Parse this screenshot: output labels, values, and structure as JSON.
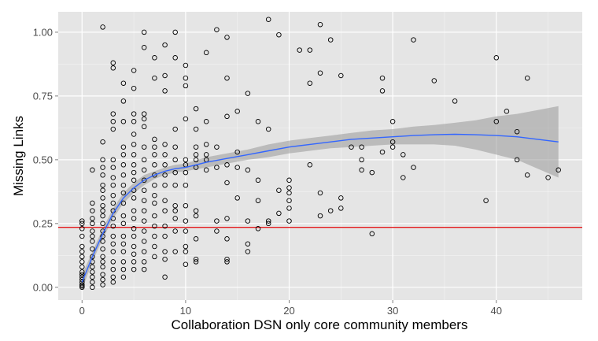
{
  "chart_data": {
    "type": "scatter",
    "title": "",
    "xlabel": "Collaboration DSN only core community members",
    "ylabel": "Missing Links",
    "xlim": [
      -2.3,
      48.3
    ],
    "ylim": [
      -0.05,
      1.08
    ],
    "x_ticks": [
      0,
      10,
      20,
      30,
      40
    ],
    "x_tick_labels": [
      "0",
      "10",
      "20",
      "30",
      "40"
    ],
    "y_ticks": [
      0.0,
      0.25,
      0.5,
      0.75,
      1.0
    ],
    "y_tick_labels": [
      "0.00",
      "0.25",
      "0.50",
      "0.75",
      "1.00"
    ],
    "grid": true,
    "background": "#e5e5e5",
    "colors": {
      "points": "#000000",
      "smooth_line": "#3366ff",
      "ribbon": "#999999",
      "hline": "#e41a1c",
      "grid": "#ffffff"
    },
    "reference_line": {
      "y": 0.235
    },
    "points": [
      [
        0,
        0.26
      ],
      [
        0,
        0.25
      ],
      [
        0,
        0.23
      ],
      [
        0,
        0.2
      ],
      [
        0,
        0.16
      ],
      [
        0,
        0.14
      ],
      [
        0,
        0.12
      ],
      [
        0,
        0.1
      ],
      [
        0,
        0.08
      ],
      [
        0,
        0.06
      ],
      [
        0,
        0.05
      ],
      [
        0,
        0.04
      ],
      [
        0,
        0.03
      ],
      [
        0,
        0.02
      ],
      [
        0,
        0.01
      ],
      [
        0,
        0.005
      ],
      [
        0,
        0.0
      ],
      [
        1,
        0.46
      ],
      [
        1,
        0.33
      ],
      [
        1,
        0.3
      ],
      [
        1,
        0.27
      ],
      [
        1,
        0.25
      ],
      [
        1,
        0.22
      ],
      [
        1,
        0.2
      ],
      [
        1,
        0.18
      ],
      [
        1,
        0.15
      ],
      [
        1,
        0.12
      ],
      [
        1,
        0.1
      ],
      [
        1,
        0.08
      ],
      [
        1,
        0.06
      ],
      [
        1,
        0.04
      ],
      [
        1,
        0.02
      ],
      [
        1,
        0.0
      ],
      [
        2,
        1.02
      ],
      [
        2,
        0.57
      ],
      [
        2,
        0.5
      ],
      [
        2,
        0.47
      ],
      [
        2,
        0.44
      ],
      [
        2,
        0.4
      ],
      [
        2,
        0.38
      ],
      [
        2,
        0.35
      ],
      [
        2,
        0.32
      ],
      [
        2,
        0.3
      ],
      [
        2,
        0.28
      ],
      [
        2,
        0.25
      ],
      [
        2,
        0.22
      ],
      [
        2,
        0.2
      ],
      [
        2,
        0.18
      ],
      [
        2,
        0.15
      ],
      [
        2,
        0.12
      ],
      [
        2,
        0.1
      ],
      [
        2,
        0.08
      ],
      [
        2,
        0.05
      ],
      [
        2,
        0.03
      ],
      [
        2,
        0.01
      ],
      [
        3,
        0.88
      ],
      [
        3,
        0.86
      ],
      [
        3,
        0.68
      ],
      [
        3,
        0.65
      ],
      [
        3,
        0.62
      ],
      [
        3,
        0.5
      ],
      [
        3,
        0.47
      ],
      [
        3,
        0.43
      ],
      [
        3,
        0.4
      ],
      [
        3,
        0.36
      ],
      [
        3,
        0.33
      ],
      [
        3,
        0.3
      ],
      [
        3,
        0.27
      ],
      [
        3,
        0.24
      ],
      [
        3,
        0.2
      ],
      [
        3,
        0.17
      ],
      [
        3,
        0.14
      ],
      [
        3,
        0.1
      ],
      [
        3,
        0.07
      ],
      [
        3,
        0.04
      ],
      [
        3,
        0.02
      ],
      [
        4,
        0.8
      ],
      [
        4,
        0.73
      ],
      [
        4,
        0.65
      ],
      [
        4,
        0.55
      ],
      [
        4,
        0.52
      ],
      [
        4,
        0.48
      ],
      [
        4,
        0.44
      ],
      [
        4,
        0.4
      ],
      [
        4,
        0.37
      ],
      [
        4,
        0.33
      ],
      [
        4,
        0.28
      ],
      [
        4,
        0.25
      ],
      [
        4,
        0.2
      ],
      [
        4,
        0.17
      ],
      [
        4,
        0.14
      ],
      [
        4,
        0.1
      ],
      [
        4,
        0.07
      ],
      [
        4,
        0.04
      ],
      [
        5,
        0.85
      ],
      [
        5,
        0.78
      ],
      [
        5,
        0.68
      ],
      [
        5,
        0.65
      ],
      [
        5,
        0.6
      ],
      [
        5,
        0.56
      ],
      [
        5,
        0.52
      ],
      [
        5,
        0.48
      ],
      [
        5,
        0.45
      ],
      [
        5,
        0.42
      ],
      [
        5,
        0.38
      ],
      [
        5,
        0.35
      ],
      [
        5,
        0.3
      ],
      [
        5,
        0.27
      ],
      [
        5,
        0.23
      ],
      [
        5,
        0.2
      ],
      [
        5,
        0.16
      ],
      [
        5,
        0.13
      ],
      [
        5,
        0.1
      ],
      [
        5,
        0.07
      ],
      [
        6,
        1.0
      ],
      [
        6,
        0.94
      ],
      [
        6,
        0.68
      ],
      [
        6,
        0.66
      ],
      [
        6,
        0.63
      ],
      [
        6,
        0.55
      ],
      [
        6,
        0.5
      ],
      [
        6,
        0.46
      ],
      [
        6,
        0.42
      ],
      [
        6,
        0.38
      ],
      [
        6,
        0.34
      ],
      [
        6,
        0.3
      ],
      [
        6,
        0.26
      ],
      [
        6,
        0.22
      ],
      [
        6,
        0.18
      ],
      [
        6,
        0.14
      ],
      [
        6,
        0.1
      ],
      [
        6,
        0.07
      ],
      [
        7,
        0.9
      ],
      [
        7,
        0.82
      ],
      [
        7,
        0.58
      ],
      [
        7,
        0.55
      ],
      [
        7,
        0.52
      ],
      [
        7,
        0.48
      ],
      [
        7,
        0.44
      ],
      [
        7,
        0.4
      ],
      [
        7,
        0.36
      ],
      [
        7,
        0.33
      ],
      [
        7,
        0.28
      ],
      [
        7,
        0.24
      ],
      [
        7,
        0.2
      ],
      [
        7,
        0.16
      ],
      [
        7,
        0.12
      ],
      [
        8,
        0.95
      ],
      [
        8,
        0.83
      ],
      [
        8,
        0.77
      ],
      [
        8,
        0.56
      ],
      [
        8,
        0.52
      ],
      [
        8,
        0.48
      ],
      [
        8,
        0.44
      ],
      [
        8,
        0.4
      ],
      [
        8,
        0.34
      ],
      [
        8,
        0.3
      ],
      [
        8,
        0.24
      ],
      [
        8,
        0.2
      ],
      [
        8,
        0.14
      ],
      [
        8,
        0.11
      ],
      [
        8,
        0.04
      ],
      [
        9,
        1.0
      ],
      [
        9,
        0.9
      ],
      [
        9,
        0.62
      ],
      [
        9,
        0.55
      ],
      [
        9,
        0.5
      ],
      [
        9,
        0.45
      ],
      [
        9,
        0.4
      ],
      [
        9,
        0.32
      ],
      [
        9,
        0.3
      ],
      [
        9,
        0.27
      ],
      [
        9,
        0.22
      ],
      [
        9,
        0.14
      ],
      [
        10,
        0.87
      ],
      [
        10,
        0.82
      ],
      [
        10,
        0.79
      ],
      [
        10,
        0.66
      ],
      [
        10,
        0.5
      ],
      [
        10,
        0.48
      ],
      [
        10,
        0.45
      ],
      [
        10,
        0.4
      ],
      [
        10,
        0.32
      ],
      [
        10,
        0.26
      ],
      [
        10,
        0.22
      ],
      [
        10,
        0.16
      ],
      [
        10,
        0.14
      ],
      [
        10,
        0.09
      ],
      [
        11,
        0.7
      ],
      [
        11,
        0.62
      ],
      [
        11,
        0.55
      ],
      [
        11,
        0.52
      ],
      [
        11,
        0.5
      ],
      [
        11,
        0.47
      ],
      [
        11,
        0.3
      ],
      [
        11,
        0.28
      ],
      [
        11,
        0.19
      ],
      [
        11,
        0.11
      ],
      [
        11,
        0.1
      ],
      [
        12,
        0.92
      ],
      [
        12,
        0.65
      ],
      [
        12,
        0.56
      ],
      [
        12,
        0.52
      ],
      [
        12,
        0.5
      ],
      [
        12,
        0.46
      ],
      [
        13,
        1.01
      ],
      [
        13,
        0.55
      ],
      [
        13,
        0.47
      ],
      [
        13,
        0.26
      ],
      [
        13,
        0.22
      ],
      [
        14,
        0.98
      ],
      [
        14,
        0.82
      ],
      [
        14,
        0.67
      ],
      [
        14,
        0.48
      ],
      [
        14,
        0.41
      ],
      [
        14,
        0.27
      ],
      [
        14,
        0.19
      ],
      [
        14,
        0.11
      ],
      [
        14,
        0.1
      ],
      [
        15,
        0.69
      ],
      [
        15,
        0.53
      ],
      [
        15,
        0.47
      ],
      [
        15,
        0.35
      ],
      [
        16,
        0.76
      ],
      [
        16,
        0.46
      ],
      [
        16,
        0.26
      ],
      [
        16,
        0.17
      ],
      [
        16,
        0.14
      ],
      [
        17,
        0.65
      ],
      [
        17,
        0.42
      ],
      [
        17,
        0.34
      ],
      [
        17,
        0.23
      ],
      [
        18,
        1.05
      ],
      [
        18,
        0.62
      ],
      [
        18,
        0.26
      ],
      [
        18,
        0.25
      ],
      [
        19,
        0.99
      ],
      [
        19,
        0.38
      ],
      [
        19,
        0.29
      ],
      [
        20,
        0.42
      ],
      [
        20,
        0.39
      ],
      [
        20,
        0.37
      ],
      [
        20,
        0.34
      ],
      [
        20,
        0.31
      ],
      [
        20,
        0.26
      ],
      [
        21,
        0.93
      ],
      [
        22,
        0.93
      ],
      [
        22,
        0.8
      ],
      [
        22,
        0.48
      ],
      [
        23,
        1.03
      ],
      [
        23,
        0.84
      ],
      [
        23,
        0.37
      ],
      [
        23,
        0.28
      ],
      [
        24,
        0.97
      ],
      [
        24,
        0.3
      ],
      [
        25,
        0.83
      ],
      [
        25,
        0.35
      ],
      [
        25,
        0.31
      ],
      [
        26,
        0.55
      ],
      [
        27,
        0.55
      ],
      [
        27,
        0.5
      ],
      [
        27,
        0.46
      ],
      [
        28,
        0.45
      ],
      [
        28,
        0.21
      ],
      [
        29,
        0.82
      ],
      [
        29,
        0.77
      ],
      [
        29,
        0.53
      ],
      [
        30,
        0.65
      ],
      [
        30,
        0.57
      ],
      [
        30,
        0.55
      ],
      [
        31,
        0.52
      ],
      [
        31,
        0.43
      ],
      [
        32,
        0.97
      ],
      [
        32,
        0.47
      ],
      [
        34,
        0.81
      ],
      [
        36,
        0.73
      ],
      [
        39,
        0.34
      ],
      [
        40,
        0.9
      ],
      [
        40,
        0.65
      ],
      [
        41,
        0.69
      ],
      [
        42,
        0.61
      ],
      [
        42,
        0.5
      ],
      [
        43,
        0.82
      ],
      [
        43,
        0.44
      ],
      [
        45,
        0.43
      ],
      [
        46,
        0.46
      ]
    ],
    "smooth": {
      "x": [
        0,
        1,
        2,
        3,
        4,
        5,
        6,
        7,
        8,
        9,
        10,
        12,
        14,
        16,
        18,
        20,
        22,
        24,
        26,
        28,
        30,
        32,
        34,
        36,
        38,
        40,
        42,
        44,
        46
      ],
      "y": [
        0.02,
        0.12,
        0.21,
        0.29,
        0.35,
        0.39,
        0.42,
        0.44,
        0.455,
        0.465,
        0.47,
        0.49,
        0.505,
        0.52,
        0.535,
        0.55,
        0.56,
        0.57,
        0.58,
        0.585,
        0.59,
        0.595,
        0.598,
        0.6,
        0.598,
        0.595,
        0.59,
        0.58,
        0.57
      ],
      "lower": [
        -0.01,
        0.1,
        0.19,
        0.27,
        0.33,
        0.37,
        0.4,
        0.425,
        0.44,
        0.45,
        0.455,
        0.47,
        0.485,
        0.5,
        0.51,
        0.525,
        0.535,
        0.545,
        0.55,
        0.555,
        0.56,
        0.56,
        0.56,
        0.555,
        0.54,
        0.52,
        0.5,
        0.465,
        0.43
      ],
      "upper": [
        0.05,
        0.14,
        0.23,
        0.31,
        0.37,
        0.41,
        0.44,
        0.455,
        0.47,
        0.48,
        0.485,
        0.51,
        0.525,
        0.54,
        0.56,
        0.575,
        0.585,
        0.595,
        0.605,
        0.615,
        0.62,
        0.63,
        0.636,
        0.645,
        0.655,
        0.67,
        0.68,
        0.695,
        0.71
      ]
    }
  }
}
